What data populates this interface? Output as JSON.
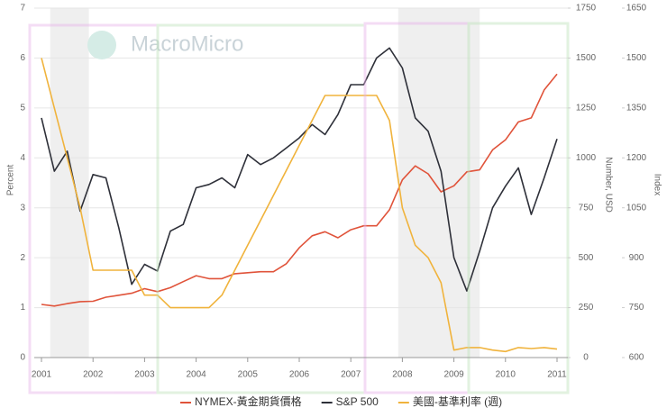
{
  "chart_data": {
    "type": "line",
    "watermark": "MacroMicro",
    "y_label": "Percent",
    "y2_label": "Number, USD",
    "y3_label": "Index",
    "x": [
      2001.0,
      2001.25,
      2001.5,
      2001.75,
      2002.0,
      2002.25,
      2002.5,
      2002.75,
      2003.0,
      2003.25,
      2003.5,
      2003.75,
      2004.0,
      2004.25,
      2004.5,
      2004.75,
      2005.0,
      2005.25,
      2005.5,
      2005.75,
      2006.0,
      2006.25,
      2006.5,
      2006.75,
      2007.0,
      2007.25,
      2007.5,
      2007.75,
      2008.0,
      2008.25,
      2008.5,
      2008.75,
      2009.0,
      2009.25,
      2009.5,
      2009.75,
      2010.0,
      2010.25,
      2010.5,
      2010.75,
      2011.0
    ],
    "xlim": [
      2000.86,
      2011.21
    ],
    "xticks": [
      2001,
      2002,
      2003,
      2004,
      2005,
      2006,
      2007,
      2008,
      2009,
      2010,
      2011
    ],
    "ylim": [
      0,
      7
    ],
    "yticks": [
      0,
      1,
      2,
      3,
      4,
      5,
      6,
      7
    ],
    "y2lim": [
      0,
      1750
    ],
    "y2ticks": [
      0,
      250,
      500,
      750,
      1000,
      1250,
      1500,
      1750
    ],
    "y3lim": [
      600,
      1650
    ],
    "y3ticks": [
      600,
      750,
      900,
      1050,
      1200,
      1350,
      1500,
      1650
    ],
    "grid": true,
    "shaded_periods": [
      [
        2001.17,
        2001.92
      ],
      [
        2007.92,
        2009.5
      ]
    ],
    "series": [
      {
        "name": "NYMEX-黃金期貨價格",
        "color": "#e0533a",
        "axis": "y2",
        "values": [
          266,
          258,
          270,
          280,
          282,
          302,
          312,
          322,
          345,
          330,
          350,
          380,
          410,
          395,
          395,
          420,
          425,
          430,
          430,
          470,
          550,
          610,
          630,
          600,
          640,
          660,
          660,
          740,
          890,
          960,
          920,
          830,
          860,
          930,
          940,
          1040,
          1090,
          1180,
          1200,
          1340,
          1420
        ]
      },
      {
        "name": "S&P 500",
        "color": "#2e3039",
        "axis": "y3",
        "values": [
          1320,
          1160,
          1220,
          1040,
          1150,
          1140,
          990,
          820,
          880,
          860,
          980,
          1000,
          1110,
          1120,
          1140,
          1110,
          1210,
          1180,
          1200,
          1230,
          1260,
          1300,
          1270,
          1330,
          1420,
          1420,
          1500,
          1530,
          1470,
          1320,
          1280,
          1160,
          900,
          800,
          920,
          1050,
          1115,
          1170,
          1030,
          1140,
          1257
        ]
      },
      {
        "name": "美國-基準利率 (週)",
        "color": "#f0b33c",
        "axis": "y",
        "values": [
          6.0,
          5.0,
          4.0,
          3.0,
          1.75,
          1.75,
          1.75,
          1.75,
          1.25,
          1.25,
          1.0,
          1.0,
          1.0,
          1.0,
          1.25,
          1.75,
          2.25,
          2.75,
          3.25,
          3.75,
          4.25,
          4.75,
          5.25,
          5.25,
          5.25,
          5.25,
          5.25,
          4.75,
          3.0,
          2.25,
          2.0,
          1.5,
          0.15,
          0.2,
          0.2,
          0.15,
          0.12,
          0.2,
          0.18,
          0.2,
          0.17
        ]
      }
    ]
  }
}
